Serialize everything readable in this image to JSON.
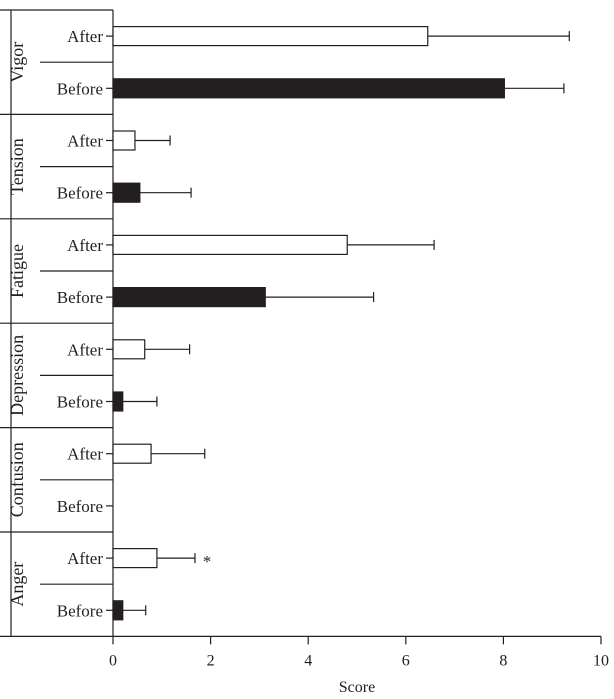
{
  "chart_data": {
    "type": "bar",
    "orientation": "horizontal",
    "title": "",
    "xlabel": "Score",
    "ylabel": "",
    "xlim": [
      0,
      10
    ],
    "x_ticks": [
      "0",
      "2",
      "4",
      "6",
      "8",
      "10"
    ],
    "grid": false,
    "groups": [
      {
        "name": "Vigor",
        "rows": [
          {
            "label": "After",
            "value": 6.45,
            "error": 2.9
          },
          {
            "label": "Before",
            "value": 8.02,
            "error": 1.22
          }
        ]
      },
      {
        "name": "Tension",
        "rows": [
          {
            "label": "After",
            "value": 0.45,
            "error": 0.72
          },
          {
            "label": "Before",
            "value": 0.55,
            "error": 1.05
          }
        ]
      },
      {
        "name": "Fatigue",
        "rows": [
          {
            "label": "After",
            "value": 4.8,
            "error": 1.78
          },
          {
            "label": "Before",
            "value": 3.12,
            "error": 2.22
          }
        ]
      },
      {
        "name": "Depression",
        "rows": [
          {
            "label": "After",
            "value": 0.65,
            "error": 0.92
          },
          {
            "label": "Before",
            "value": 0.2,
            "error": 0.7
          }
        ]
      },
      {
        "name": "Confusion",
        "rows": [
          {
            "label": "After",
            "value": 0.78,
            "error": 1.1
          },
          {
            "label": "Before",
            "value": 0,
            "error": 0
          }
        ]
      },
      {
        "name": "Anger",
        "rows": [
          {
            "label": "After",
            "value": 0.9,
            "error": 0.78,
            "annotation": "*"
          },
          {
            "label": "Before",
            "value": 0.2,
            "error": 0.47
          }
        ]
      }
    ],
    "colors": {
      "After": "#ffffff",
      "Before": "#231f20"
    }
  }
}
